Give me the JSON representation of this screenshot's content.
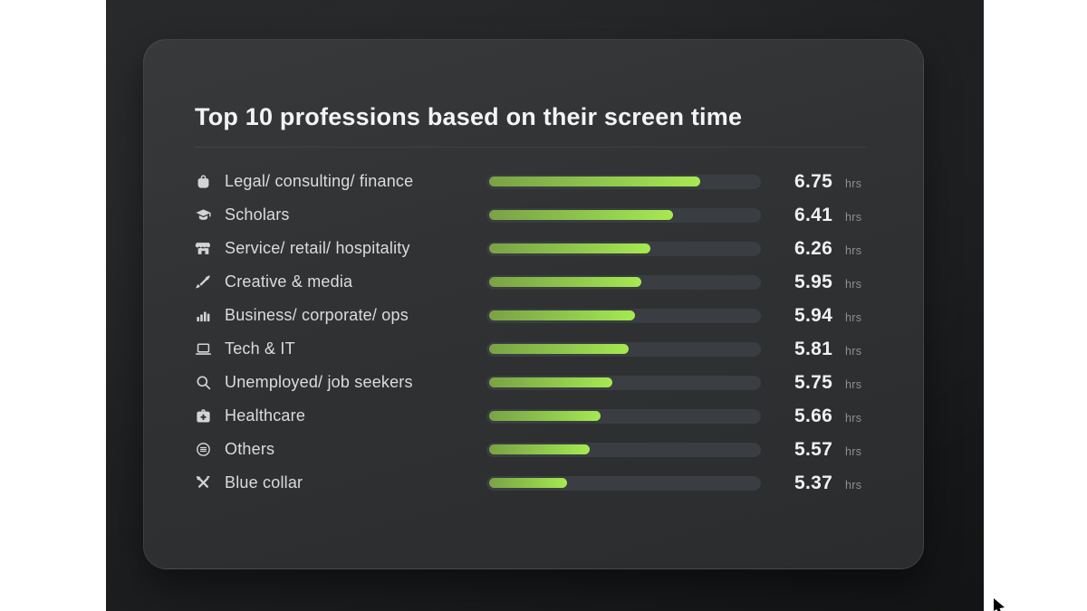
{
  "header": {
    "title": "Top 10 professions based on their screen time"
  },
  "chart_data": {
    "type": "bar",
    "orientation": "horizontal",
    "title": "Top 10 professions based on their screen time",
    "unit": "hrs",
    "categories": [
      "Legal/ consulting/ finance",
      "Scholars",
      "Service/ retail/ hospitality",
      "Creative & media",
      "Business/ corporate/ ops",
      "Tech & IT",
      "Unemployed/ job seekers",
      "Healthcare",
      "Others",
      "Blue collar"
    ],
    "values": [
      6.75,
      6.41,
      6.26,
      5.95,
      5.94,
      5.81,
      5.75,
      5.66,
      5.57,
      5.37
    ],
    "value_labels": [
      "6.75",
      "6.41",
      "6.26",
      "5.95",
      "5.94",
      "5.81",
      "5.75",
      "5.66",
      "5.57",
      "5.37"
    ],
    "icons": [
      "bag-icon",
      "graduation-cap-icon",
      "storefront-icon",
      "pen-icon",
      "bar-chart-icon",
      "laptop-icon",
      "search-icon",
      "medical-kit-icon",
      "list-circle-icon",
      "tools-icon"
    ],
    "bar_fill_percent": [
      78.6,
      68.8,
      60.5,
      57.0,
      54.7,
      52.6,
      46.4,
      42.2,
      38.2,
      30.0
    ],
    "axis_range_estimate": [
      4.5,
      7.4
    ],
    "grid": false,
    "legend": "none",
    "colors": {
      "bar_fill_start": "#7aa246",
      "bar_fill_end": "#a6e951",
      "bar_track": "#3a3d41",
      "card_background": "#2f3133",
      "page_background": "#1b1d1f",
      "title_text": "#f3f4f5",
      "label_text": "#dadcdd",
      "value_text": "#eef0f1",
      "unit_text": "#8e9193"
    }
  }
}
